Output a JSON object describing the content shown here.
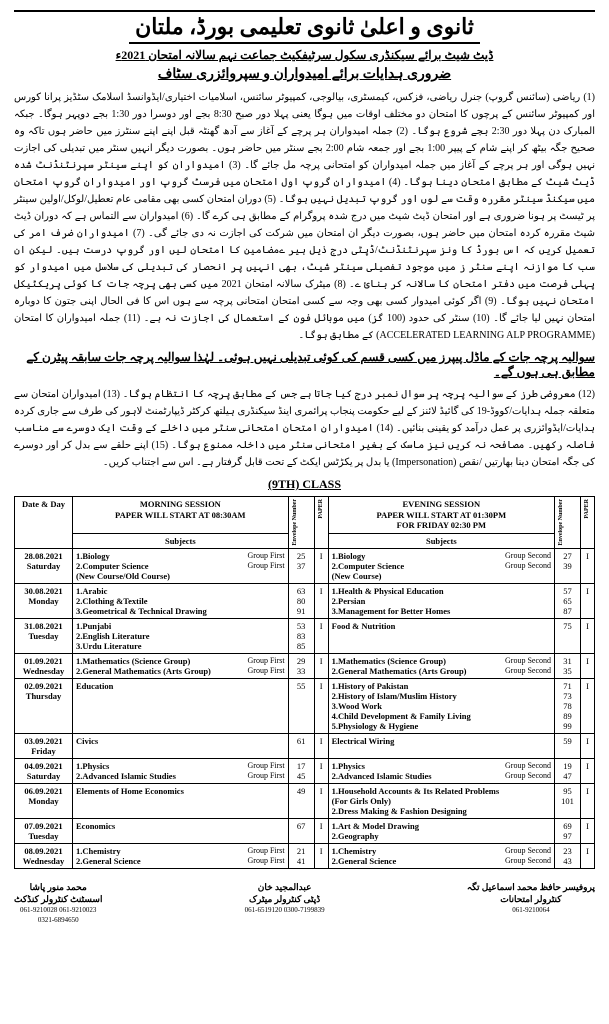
{
  "header": {
    "board": "ثانوی و اعلیٰ ثانوی تعلیمی بورڈ، ملتان",
    "datesheet_line": "ڈیٹ شیٹ برائے سیکنڈری سکول سرٹیفکیٹ جماعت نہم سالانہ امتحان 2021ء",
    "instructions_title": "ضروری ہدایات برائے امیدواران و سپروائزری سٹاف"
  },
  "instructions": "(1) ریاضی (سائنس گروپ) جنرل ریاضی، فزکس، کیمسٹری، بیالوجی، کمپیوٹر سائنس، اسلامیات اختیاری/ایڈوانسڈ اسلامک سٹڈیز پرانا کورس اور کمپیوٹر سائنس کے پرچوں کا امتحان دو مختلف اوقات میں ہوگا یعنی پہلا دور صبح 8:30 بجے اور دوسرا دور 1:30 بجے دوپہر ہوگا۔ جبکہ المبارک دن پہلا دور 2:30 بجے شروع ہوگا۔ (2) جملہ امیدواران ہر پرچے کے آغاز سے آدھ گھنٹہ قبل اپنے اپنے سنٹرز میں حاضر ہوں تاکہ وہ صحیح جگہ بیٹھ کر اپنے شام کے پیپر 1:00 بجے اور جمعہ شام 2:00 بجے سنٹر میں حاضر ہوں۔ بصورت دیگر انہیں سنٹر میں تبدیلی کی اجازت نہیں ہوگی اور ہر پرچے کے آغاز میں جملہ امیدواران کو امتحانی پرچہ مل جائے گا۔ (3) امیدواران کو اپنے سینٹر سپرنٹنڈنٹ شدہ ڈیٹ شیٹ کے مطابق امتحان دینا ہوگا۔ (4) امیدواران گروپ اول امتحان میں فرسٹ گروپ اور امیدواران گروپ امتحان میں سیکنڈ سینٹر مقررہ وقت سے لوں اور گروپ تبدیل نہیں ہوگا۔ (5) دوران امتحان کسی بھی مقامی عام تعطیل/لوکل/اولین سینٹر پر ٹیسٹ پر ہونا ضروری ہے اور امتحان ڈیٹ شیٹ میں درج شدہ پروگرام کے مطابق ہی کرے گا۔ (6) امیدواران سے التماس ہے کہ دوران ڈیٹ شیٹ مقررہ کردہ امتحان میں حاضر ہوں، بصورت دیگر ان امتحان میں شرکت کی اجازت نہ دی جائے گی۔ (7) امیدواران ضرف امر کی تعمیل کریں کہ اس بورڈ کا ونز سپرنٹنڈنٹ/ڈپٹی درج ذیل ہیر ے‌مضامین کا امتحان لیں اور گروپ درست ہیں۔ لیکن ان سب کا موازنہ اپنے سنٹر ز میں موجود تفصیلی سینٹر شیٹ، بھی انہیں پر انحصار کی تبدیلی کی سلاسل میں امیدوار کو پہلی فرصت میں دفتر امتحان کا سالانہ کر بنائ ے۔ (8) میٹرک سالانہ امتحان 2021 میں کسی بھی پرچہ جات کا کوئی پریکٹیکل امتحان نہیں ہوگا۔ (9) اگر کوئی امیدوار کسی بھی وجہ سے کسی امتحان امتحانی پرچہ سے ہوں اس کا فی الحال اپنی جتون کا دوبارہ امتحان نہیں لیا جائے گا۔ (10) سنٹر کی حدود (100 گز) میں موبائل فون کے استعمال کی اجازت نہ ہے۔ (11) جملہ امیدواران کا امتحان (ACCELERATED LEARNING ALP PROGRAMME) کے مطابق ہوگا۔",
  "pattern_line": "سوالیہ پرچہ جات کے ماڈل پیپرز میں کسی قسم کی کوئی تبدیلی نہیں ہوئی۔ لہٰذا سوالیہ پرچہ جات سابقہ پیٹرن کے مطابق ہی ہوں گے۔",
  "instructions2": "(12) معروضی طرز کے سوالیہ پرچہ پر سوال نمبر درج کیا جاتا ہے جس کے مطابق پرچہ کا انتظام ہوگا۔ (13) امیدواران امتحان سے متعلقہ جملہ ہدایات/کووڈ-19 کی گائیڈ لائنز کے لیے حکومت پنجاب پرائمری اینڈ سیکنڈری ہیلتھ کرکٹر ڈیپارٹمنٹ لاہور کی طرف سے جاری کردہ ہدایات/ایڈوائزری پر عمل درآمد کو یقینی بنائیں۔ (14) امیدواران امتحان امتحانی سنٹر میں داخلے کے وقت ایک دوسرے سے مناسب فاصلہ رکھیں۔ مصافحہ نہ کریں نیز ماسک کے بغیر امتحانی سنٹر میں داخلہ ممنوع ہوگا۔ (15) اپنے حلقے سے بدل کر اور دوسرے کی جگہ امتحان دینا بھارتیں /نقص (Impersonation) یا بدل پر یکڑٹس ایکٹ کے تحت قابل گرفتار ہے۔ اس سے اجتناب کریں۔",
  "class_label": "(9TH) CLASS",
  "table": {
    "col_date": "Date & Day",
    "morning_head": "MORNING SESSION\nPAPER WILL START AT 08:30AM",
    "evening_head": "EVENING SESSION\nPAPER WILL START AT 01:30PM\nFOR FRIDAY 02:30 PM",
    "subjects_label": "Subjects",
    "env_label": "Envelope Number",
    "paper_label": "PAPER",
    "rows": [
      {
        "date": "28.08.2021",
        "day": "Saturday",
        "m": [
          {
            "n": "1.Biology",
            "g": "Group First",
            "e": "25"
          },
          {
            "n": "2.Computer Science",
            "g": "Group First",
            "e": "37"
          },
          {
            "n": "(New Course/Old Course)",
            "g": "",
            "e": ""
          }
        ],
        "mp": "I",
        "e": [
          {
            "n": "1.Biology",
            "g": "Group Second",
            "e": "27"
          },
          {
            "n": "2.Computer Science",
            "g": "Group Second",
            "e": "39"
          },
          {
            "n": "(New Course)",
            "g": "",
            "e": ""
          }
        ],
        "ep": "I"
      },
      {
        "date": "30.08.2021",
        "day": "Monday",
        "m": [
          {
            "n": "1.Arabic",
            "g": "",
            "e": "63"
          },
          {
            "n": "2.Clothing &Textile",
            "g": "",
            "e": "80"
          },
          {
            "n": "3.Geometrical & Technical Drawing",
            "g": "",
            "e": "91"
          }
        ],
        "mp": "I",
        "e": [
          {
            "n": "1.Health & Physical Education",
            "g": "",
            "e": "57"
          },
          {
            "n": "2.Persian",
            "g": "",
            "e": "65"
          },
          {
            "n": "3.Management for Better Homes",
            "g": "",
            "e": "87"
          }
        ],
        "ep": "I"
      },
      {
        "date": "31.08.2021",
        "day": "Tuesday",
        "m": [
          {
            "n": "1.Punjabi",
            "g": "",
            "e": "53"
          },
          {
            "n": "2.English Literature",
            "g": "",
            "e": "83"
          },
          {
            "n": "3.Urdu Literature",
            "g": "",
            "e": "85"
          }
        ],
        "mp": "I",
        "e": [
          {
            "n": "Food & Nutrition",
            "g": "",
            "e": "75"
          }
        ],
        "ep": "I"
      },
      {
        "date": "01.09.2021",
        "day": "Wednesday",
        "m": [
          {
            "n": "1.Mathematics (Science Group)",
            "g": "Group First",
            "e": "29"
          },
          {
            "n": "2.General Mathematics (Arts Group)",
            "g": "Group First",
            "e": "33"
          }
        ],
        "mp": "I",
        "e": [
          {
            "n": "1.Mathematics (Science Group)",
            "g": "Group Second",
            "e": "31"
          },
          {
            "n": "2.General Mathematics (Arts Group)",
            "g": "Group Second",
            "e": "35"
          }
        ],
        "ep": "I"
      },
      {
        "date": "02.09.2021",
        "day": "Thursday",
        "m": [
          {
            "n": "Education",
            "g": "",
            "e": "55"
          }
        ],
        "mp": "I",
        "e": [
          {
            "n": "1.History of Pakistan",
            "g": "",
            "e": "71"
          },
          {
            "n": "2.History of Islam/Muslim History",
            "g": "",
            "e": "73"
          },
          {
            "n": "3.Wood Work",
            "g": "",
            "e": "78"
          },
          {
            "n": "4.Child Development & Family Living",
            "g": "",
            "e": "89"
          },
          {
            "n": "5.Physiology & Hygiene",
            "g": "",
            "e": "99"
          }
        ],
        "ep": "I"
      },
      {
        "date": "03.09.2021",
        "day": "Friday",
        "m": [
          {
            "n": "Civics",
            "g": "",
            "e": "61"
          }
        ],
        "mp": "I",
        "e": [
          {
            "n": "Electrical Wiring",
            "g": "",
            "e": "59"
          }
        ],
        "ep": "I"
      },
      {
        "date": "04.09.2021",
        "day": "Saturday",
        "m": [
          {
            "n": "1.Physics",
            "g": "Group First",
            "e": "17"
          },
          {
            "n": "2.Advanced Islamic Studies",
            "g": "Group First",
            "e": "45"
          }
        ],
        "mp": "I",
        "e": [
          {
            "n": "1.Physics",
            "g": "Group Second",
            "e": "19"
          },
          {
            "n": "2.Advanced Islamic Studies",
            "g": "Group Second",
            "e": "47"
          }
        ],
        "ep": "I"
      },
      {
        "date": "06.09.2021",
        "day": "Monday",
        "m": [
          {
            "n": "Elements of Home Economics",
            "g": "",
            "e": "49"
          }
        ],
        "mp": "I",
        "e": [
          {
            "n": "1.Household Accounts & Its Related Problems",
            "g": "",
            "e": "95"
          },
          {
            "n": "(For Girls Only)",
            "g": "",
            "e": ""
          },
          {
            "n": "2.Dress Making & Fashion Designing",
            "g": "",
            "e": "101"
          }
        ],
        "ep": "I"
      },
      {
        "date": "07.09.2021",
        "day": "Tuesday",
        "m": [
          {
            "n": "Economics",
            "g": "",
            "e": "67"
          }
        ],
        "mp": "I",
        "e": [
          {
            "n": "1.Art & Model Drawing",
            "g": "",
            "e": "69"
          },
          {
            "n": "2.Geography",
            "g": "",
            "e": "97"
          }
        ],
        "ep": "I"
      },
      {
        "date": "08.09.2021",
        "day": "Wednesday",
        "m": [
          {
            "n": "1.Chemistry",
            "g": "Group First",
            "e": "21"
          },
          {
            "n": "2.General Science",
            "g": "Group First",
            "e": "41"
          }
        ],
        "mp": "I",
        "e": [
          {
            "n": "1.Chemistry",
            "g": "Group Second",
            "e": "23"
          },
          {
            "n": "2.General Science",
            "g": "Group Second",
            "e": "43"
          }
        ],
        "ep": "I"
      }
    ]
  },
  "signatures": {
    "left": {
      "name": "محمد منور پاشا",
      "title": "اسسٹنٹ کنٹرولر کنڈکٹ",
      "phones": "061-9210028  061-9210023\n0321-6894650"
    },
    "center": {
      "name": "عبدالمجید خان",
      "title": "ڈپٹی کنٹرولر میٹرک",
      "phones": "061-6519120  0300-7199839"
    },
    "right": {
      "name": "پروفیسر حافظ محمد اسماعیل تگہ",
      "title": "کنٹرولر امتحانات",
      "phones": "061-9210064"
    }
  }
}
